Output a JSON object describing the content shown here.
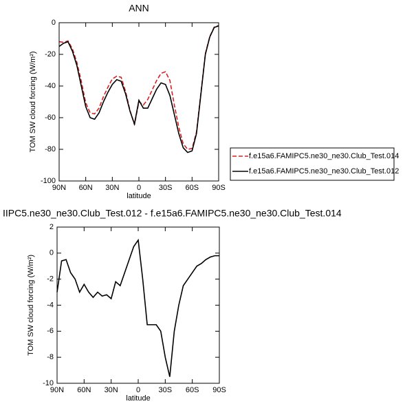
{
  "chart_data": [
    {
      "type": "line",
      "title": "ANN",
      "xlabel": "latitude",
      "ylabel": "TOM SW cloud forcing (W/m²)",
      "x": [
        90,
        85,
        80,
        75,
        70,
        65,
        60,
        55,
        50,
        45,
        40,
        35,
        30,
        25,
        20,
        15,
        10,
        5,
        0,
        -5,
        -10,
        -15,
        -20,
        -25,
        -30,
        -35,
        -40,
        -45,
        -50,
        -55,
        -60,
        -65,
        -70,
        -75,
        -80,
        -85,
        -90
      ],
      "xlim": [
        90,
        -90
      ],
      "xticks": [
        {
          "value": 90,
          "label": "90N"
        },
        {
          "value": 60,
          "label": "60N"
        },
        {
          "value": 30,
          "label": "30N"
        },
        0,
        {
          "value": -30,
          "label": "30S"
        },
        {
          "value": -60,
          "label": "60S"
        },
        {
          "value": -90,
          "label": "90S"
        }
      ],
      "ylim": [
        -100,
        0
      ],
      "yticks": [
        -100,
        -80,
        -60,
        -40,
        -20,
        0
      ],
      "legend": "right",
      "series": [
        {
          "name": "f.e15a6.FAMIPC5.ne30_ne30.Club_Test.014",
          "color": "#d62020",
          "dash": "dashed",
          "values": [
            -12,
            -12.4,
            -11.5,
            -16.5,
            -25,
            -37,
            -50.6,
            -57,
            -57.6,
            -54,
            -46.7,
            -40.8,
            -35.5,
            -33.8,
            -34.5,
            -43.5,
            -55.5,
            -64.5,
            -50,
            -52,
            -48.5,
            -42.5,
            -36.5,
            -32,
            -31,
            -36.5,
            -52,
            -66,
            -76.5,
            -80,
            -79.5,
            -69,
            -44.2,
            -19.5,
            -8.7,
            -2.8,
            -1.8
          ]
        },
        {
          "name": "f.e15a6.FAMIPC5.ne30_ne30.Club_Test.012",
          "color": "#000000",
          "dash": "solid",
          "values": [
            -15,
            -13,
            -12,
            -18,
            -27,
            -40,
            -53,
            -60,
            -61,
            -57,
            -50,
            -44,
            -39,
            -36,
            -37,
            -45,
            -56,
            -64,
            -49,
            -54,
            -54,
            -48,
            -42,
            -38,
            -39,
            -46,
            -58,
            -70,
            -79,
            -82,
            -81,
            -70,
            -45,
            -20,
            -9,
            -3,
            -2
          ]
        }
      ]
    },
    {
      "type": "line",
      "title": "IIPC5.ne30_ne30.Club_Test.012 - f.e15a6.FAMIPC5.ne30_ne30.Club_Test.014",
      "xlabel": "latitude",
      "ylabel": "TOM SW cloud forcing (W/m²)",
      "x": [
        90,
        85,
        80,
        75,
        70,
        65,
        60,
        55,
        50,
        45,
        40,
        35,
        30,
        25,
        20,
        15,
        10,
        5,
        0,
        -5,
        -10,
        -15,
        -20,
        -25,
        -30,
        -35,
        -40,
        -45,
        -50,
        -55,
        -60,
        -65,
        -70,
        -75,
        -80,
        -85,
        -90
      ],
      "xlim": [
        90,
        -90
      ],
      "xticks": [
        {
          "value": 90,
          "label": "90N"
        },
        {
          "value": 60,
          "label": "60N"
        },
        {
          "value": 30,
          "label": "30N"
        },
        0,
        {
          "value": -30,
          "label": "30S"
        },
        {
          "value": -60,
          "label": "60S"
        },
        {
          "value": -90,
          "label": "90S"
        }
      ],
      "ylim": [
        -10,
        2
      ],
      "yticks": [
        -10,
        -8,
        -6,
        -4,
        -2,
        0,
        2
      ],
      "series": [
        {
          "color": "#000000",
          "dash": "solid",
          "values": [
            -3,
            -0.6,
            -0.5,
            -1.5,
            -2,
            -3,
            -2.4,
            -3,
            -3.4,
            -3,
            -3.3,
            -3.2,
            -3.5,
            -2.2,
            -2.5,
            -1.5,
            -0.5,
            0.5,
            1,
            -2,
            -5.5,
            -5.5,
            -5.5,
            -6,
            -8,
            -9.5,
            -6,
            -4,
            -2.5,
            -2,
            -1.5,
            -1,
            -0.8,
            -0.5,
            -0.3,
            -0.2,
            -0.2
          ]
        }
      ]
    }
  ]
}
